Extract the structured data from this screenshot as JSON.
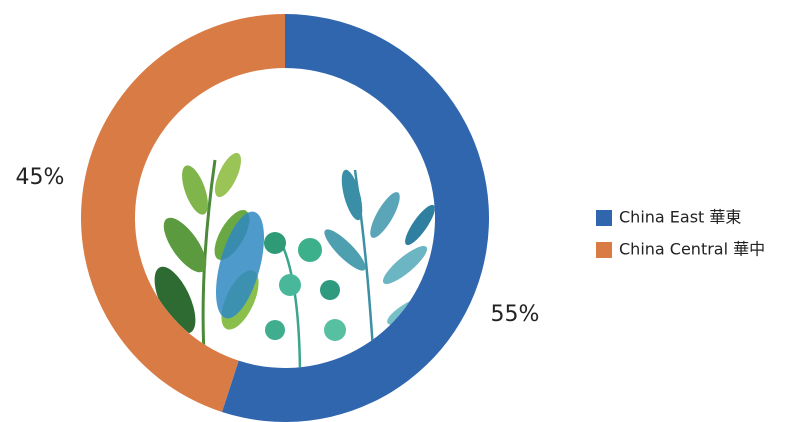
{
  "chart_data": {
    "type": "donut",
    "categories": [
      "China East 華東",
      "China Central 華中"
    ],
    "values": [
      55,
      45
    ],
    "value_labels": [
      "55%",
      "45%"
    ],
    "colors": [
      "#3066ae",
      "#d97b45"
    ]
  }
}
